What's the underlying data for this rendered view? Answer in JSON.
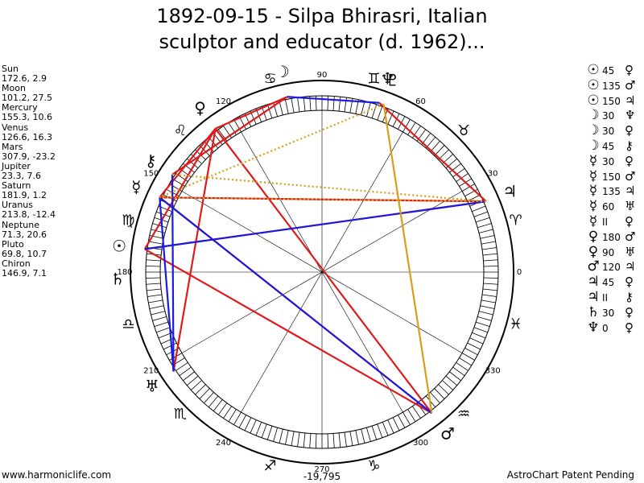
{
  "title_line1": "1892-09-15 - Silpa Bhirasri, Italian",
  "title_line2": "sculptor and educator (d. 1962)...",
  "planets": [
    {
      "name": "Sun",
      "value": "172.6, 2.9",
      "glyph": "☉",
      "lon": 172.6
    },
    {
      "name": "Moon",
      "value": "101.2, 27.5",
      "glyph": "☽",
      "lon": 101.2
    },
    {
      "name": "Mercury",
      "value": "155.3, 10.6",
      "glyph": "☿",
      "lon": 155.3
    },
    {
      "name": "Venus",
      "value": "126.6, 16.3",
      "glyph": "♀",
      "lon": 126.6
    },
    {
      "name": "Mars",
      "value": "307.9, -23.2",
      "glyph": "♂",
      "lon": 307.9
    },
    {
      "name": "Jupiter",
      "value": "23.3, 7.6",
      "glyph": "♃",
      "lon": 23.3
    },
    {
      "name": "Saturn",
      "value": "181.9, 1.2",
      "glyph": "♄",
      "lon": 181.9
    },
    {
      "name": "Uranus",
      "value": "213.8, -12.4",
      "glyph": "♅",
      "lon": 213.8
    },
    {
      "name": "Neptune",
      "value": "71.3, 20.6",
      "glyph": "♆",
      "lon": 71.3
    },
    {
      "name": "Pluto",
      "value": "69.8, 10.7",
      "glyph": "♇",
      "lon": 69.8
    },
    {
      "name": "Chiron",
      "value": "146.9, 7.1",
      "glyph": "⚷",
      "lon": 146.9
    }
  ],
  "aspects": [
    {
      "p1": "Sun",
      "g1": "☉",
      "angle": "45",
      "p2": "Venus",
      "g2": "♀"
    },
    {
      "p1": "Sun",
      "g1": "☉",
      "angle": "135",
      "p2": "Mars",
      "g2": "♂"
    },
    {
      "p1": "Sun",
      "g1": "☉",
      "angle": "150",
      "p2": "Jupiter",
      "g2": "♃"
    },
    {
      "p1": "Moon",
      "g1": "☽",
      "angle": "30",
      "p2": "Neptune",
      "g2": "♆"
    },
    {
      "p1": "Moon",
      "g1": "☽",
      "angle": "30",
      "p2": "Venus",
      "g2": "♀"
    },
    {
      "p1": "Moon",
      "g1": "☽",
      "angle": "45",
      "p2": "Chiron",
      "g2": "⚷"
    },
    {
      "p1": "Mercury",
      "g1": "☿",
      "angle": "30",
      "p2": "Venus",
      "g2": "♀"
    },
    {
      "p1": "Mercury",
      "g1": "☿",
      "angle": "150",
      "p2": "Mars",
      "g2": "♂"
    },
    {
      "p1": "Mercury",
      "g1": "☿",
      "angle": "135",
      "p2": "Jupiter",
      "g2": "♃"
    },
    {
      "p1": "Mercury",
      "g1": "☿",
      "angle": "60",
      "p2": "Uranus",
      "g2": "♅"
    },
    {
      "p1": "Mercury",
      "g1": "☿",
      "angle": "II",
      "p2": "Venus",
      "g2": "♀"
    },
    {
      "p1": "Venus",
      "g1": "♀",
      "angle": "180",
      "p2": "Mars",
      "g2": "♂"
    },
    {
      "p1": "Venus",
      "g1": "♀",
      "angle": "90",
      "p2": "Uranus",
      "g2": "♅"
    },
    {
      "p1": "Mars",
      "g1": "♂",
      "angle": "120",
      "p2": "Jupiter",
      "g2": "♃"
    },
    {
      "p1": "Jupiter",
      "g1": "♃",
      "angle": "45",
      "p2": "Venus",
      "g2": "♀"
    },
    {
      "p1": "Jupiter",
      "g1": "♃",
      "angle": "II",
      "p2": "Chiron",
      "g2": "⚷"
    },
    {
      "p1": "Saturn",
      "g1": "♄",
      "angle": "30",
      "p2": "Venus",
      "g2": "♀"
    },
    {
      "p1": "Neptune",
      "g1": "♆",
      "angle": "0",
      "p2": "Venus",
      "g2": "♀"
    }
  ],
  "zodiac": [
    {
      "sign": "Aries",
      "glyph": "♈"
    },
    {
      "sign": "Taurus",
      "glyph": "♉"
    },
    {
      "sign": "Gemini",
      "glyph": "♊"
    },
    {
      "sign": "Cancer",
      "glyph": "♋"
    },
    {
      "sign": "Leo",
      "glyph": "♌"
    },
    {
      "sign": "Virgo",
      "glyph": "♍"
    },
    {
      "sign": "Libra",
      "glyph": "♎"
    },
    {
      "sign": "Scorpio",
      "glyph": "♏"
    },
    {
      "sign": "Sagittarius",
      "glyph": "♐"
    },
    {
      "sign": "Capricorn",
      "glyph": "♑"
    },
    {
      "sign": "Aquarius",
      "glyph": "♒"
    },
    {
      "sign": "Pisces",
      "glyph": "♓"
    }
  ],
  "degree_labels": [
    "0",
    "30",
    "60",
    "90",
    "120",
    "150",
    "180",
    "210",
    "240",
    "270",
    "300",
    "330"
  ],
  "aspect_lines": [
    {
      "from": "Sun",
      "to": "Jupiter",
      "color": "#e01a1a",
      "style": "solid"
    },
    {
      "from": "Sun",
      "to": "Mars",
      "color": "#e01a1a",
      "style": "solid"
    },
    {
      "from": "Sun",
      "to": "Venus",
      "color": "#e01a1a",
      "style": "solid"
    },
    {
      "from": "Mercury",
      "to": "Mars",
      "color": "#e01a1a",
      "style": "solid"
    },
    {
      "from": "Mercury",
      "to": "Jupiter",
      "color": "#e01a1a",
      "style": "solid"
    },
    {
      "from": "Mercury",
      "to": "Venus",
      "color": "#e01a1a",
      "style": "solid"
    },
    {
      "from": "Venus",
      "to": "Mars",
      "color": "#e01a1a",
      "style": "solid"
    },
    {
      "from": "Venus",
      "to": "Uranus",
      "color": "#e01a1a",
      "style": "solid"
    },
    {
      "from": "Moon",
      "to": "Venus",
      "color": "#e01a1a",
      "style": "solid"
    },
    {
      "from": "Moon",
      "to": "Chiron",
      "color": "#e01a1a",
      "style": "solid"
    },
    {
      "from": "Neptune",
      "to": "Jupiter",
      "color": "#e01a1a",
      "style": "solid"
    },
    {
      "from": "Moon",
      "to": "Neptune",
      "color": "#1a1ae0",
      "style": "solid"
    },
    {
      "from": "Sun",
      "to": "Jupiter",
      "color": "#1a1ae0",
      "style": "solid"
    },
    {
      "from": "Mercury",
      "to": "Mars",
      "color": "#1a1ae0",
      "style": "solid"
    },
    {
      "from": "Mercury",
      "to": "Uranus",
      "color": "#1a1ae0",
      "style": "solid"
    },
    {
      "from": "Chiron",
      "to": "Uranus",
      "color": "#1a1ae0",
      "style": "solid"
    },
    {
      "from": "Pluto",
      "to": "Mars",
      "color": "#d4a017",
      "style": "solid"
    },
    {
      "from": "Pluto",
      "to": "Mercury",
      "color": "#d4a017",
      "style": "dotted"
    },
    {
      "from": "Jupiter",
      "to": "Mercury",
      "color": "#d4a017",
      "style": "dotted"
    },
    {
      "from": "Jupiter",
      "to": "Chiron",
      "color": "#d4a017",
      "style": "dotted"
    }
  ],
  "footer_left": "www.harmoniclife.com",
  "footer_center": "-19,795",
  "footer_right": "AstroChart Patent Pending"
}
